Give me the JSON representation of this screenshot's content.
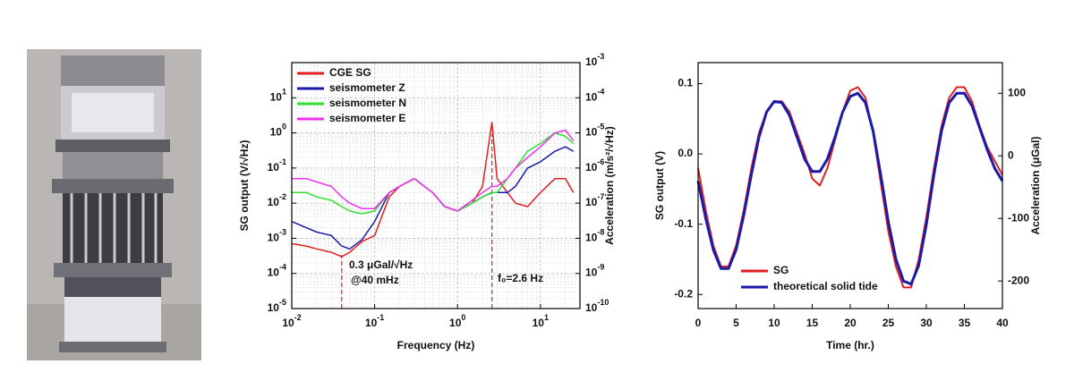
{
  "chart_data": [
    {
      "type": "line",
      "xlabel": "Frequency (Hz)",
      "ylabel": "SG output (V/√Hz)",
      "y2label": "Acceleration (m/s²/√Hz)",
      "xscale": "log",
      "yscale": "log",
      "y2scale": "log",
      "xlim": [
        0.01,
        30
      ],
      "ylim": [
        1e-05,
        100
      ],
      "y2lim": [
        1e-10,
        0.001
      ],
      "xticks": [
        {
          "value": 0.01,
          "label": "10",
          "exponent": "-2"
        },
        {
          "value": 0.1,
          "label": "10",
          "exponent": "-1"
        },
        {
          "value": 1,
          "label": "10",
          "exponent": "0"
        },
        {
          "value": 10,
          "label": "10",
          "exponent": "1"
        }
      ],
      "yticks": [
        {
          "value": 1e-05,
          "label": "10",
          "exponent": "-5"
        },
        {
          "value": 0.0001,
          "label": "10",
          "exponent": "-4"
        },
        {
          "value": 0.001,
          "label": "10",
          "exponent": "-3"
        },
        {
          "value": 0.01,
          "label": "10",
          "exponent": "-2"
        },
        {
          "value": 0.1,
          "label": "10",
          "exponent": "-1"
        },
        {
          "value": 1,
          "label": "10",
          "exponent": "0"
        },
        {
          "value": 10,
          "label": "10",
          "exponent": "1"
        }
      ],
      "y2ticks": [
        {
          "value": 1e-10,
          "label": "10",
          "exponent": "-10"
        },
        {
          "value": 1e-09,
          "label": "10",
          "exponent": "-9"
        },
        {
          "value": 1e-08,
          "label": "10",
          "exponent": "-8"
        },
        {
          "value": 1e-07,
          "label": "10",
          "exponent": "-7"
        },
        {
          "value": 1e-06,
          "label": "10",
          "exponent": "-6"
        },
        {
          "value": 1e-05,
          "label": "10",
          "exponent": "-5"
        },
        {
          "value": 0.0001,
          "label": "10",
          "exponent": "-4"
        },
        {
          "value": 0.001,
          "label": "10",
          "exponent": "-3"
        }
      ],
      "grid": true,
      "legend": "upper left",
      "x": [
        0.01,
        0.015,
        0.02,
        0.03,
        0.04,
        0.05,
        0.07,
        0.1,
        0.15,
        0.2,
        0.3,
        0.5,
        0.7,
        1,
        1.5,
        2,
        2.6,
        3,
        4,
        5,
        7,
        10,
        15,
        20,
        25
      ],
      "series": [
        {
          "name": "CGE SG",
          "color": "#e02020",
          "values": [
            0.0007,
            0.0006,
            0.0005,
            0.0004,
            0.0003,
            0.0004,
            0.0008,
            0.0012,
            0.015,
            0.03,
            0.05,
            0.02,
            0.008,
            0.006,
            0.01,
            0.03,
            2,
            0.05,
            0.02,
            0.01,
            0.008,
            0.02,
            0.05,
            0.05,
            0.02
          ]
        },
        {
          "name": "seismometer Z",
          "color": "#1a1aa8",
          "values": [
            0.003,
            0.002,
            0.0015,
            0.0012,
            0.0006,
            0.0005,
            0.0009,
            0.003,
            0.02,
            0.03,
            0.05,
            0.02,
            0.008,
            0.006,
            0.01,
            0.015,
            0.02,
            0.02,
            0.02,
            0.03,
            0.1,
            0.15,
            0.3,
            0.4,
            0.3
          ]
        },
        {
          "name": "seismometer N",
          "color": "#30e030",
          "values": [
            0.02,
            0.02,
            0.015,
            0.012,
            0.008,
            0.006,
            0.005,
            0.006,
            0.02,
            0.03,
            0.05,
            0.02,
            0.008,
            0.006,
            0.01,
            0.015,
            0.02,
            0.02,
            0.05,
            0.1,
            0.3,
            0.5,
            1,
            0.8,
            0.5
          ]
        },
        {
          "name": "seismometer E",
          "color": "#f030f0",
          "values": [
            0.05,
            0.05,
            0.04,
            0.03,
            0.015,
            0.01,
            0.007,
            0.007,
            0.02,
            0.03,
            0.05,
            0.02,
            0.008,
            0.006,
            0.012,
            0.02,
            0.03,
            0.03,
            0.05,
            0.1,
            0.2,
            0.4,
            1,
            1.2,
            0.6
          ]
        }
      ],
      "reference_lines": [
        0.04,
        2.6
      ],
      "annotations": [
        "0.3 μGal/√Hz",
        "@40 mHz",
        "f₀=2.6 Hz"
      ]
    },
    {
      "type": "line",
      "xlabel": "Time (hr.)",
      "ylabel": "SG output (V)",
      "y2label": "Acceleration (μGal)",
      "xlim": [
        0,
        40
      ],
      "ylim": [
        -0.22,
        0.13
      ],
      "y2lim": [
        -244,
        149
      ],
      "xticks": [
        0,
        5,
        10,
        15,
        20,
        25,
        30,
        35,
        40
      ],
      "yticks": [
        -0.2,
        -0.1,
        {
          "value": 0,
          "label": "0.0"
        },
        0.1
      ],
      "y2ticks": [
        -200,
        -100,
        0,
        100
      ],
      "grid": false,
      "legend": "lower left",
      "x": [
        0,
        1,
        2,
        3,
        4,
        5,
        6,
        7,
        8,
        9,
        10,
        11,
        12,
        13,
        14,
        15,
        16,
        17,
        18,
        19,
        20,
        21,
        22,
        23,
        24,
        25,
        26,
        27,
        28,
        29,
        30,
        31,
        32,
        33,
        34,
        35,
        36,
        37,
        38,
        39,
        40
      ],
      "series": [
        {
          "name": "SG",
          "color": "#e02020",
          "values": [
            -0.02,
            -0.08,
            -0.13,
            -0.16,
            -0.16,
            -0.13,
            -0.08,
            -0.02,
            0.03,
            0.06,
            0.075,
            0.075,
            0.06,
            0.03,
            0.0,
            -0.035,
            -0.045,
            -0.02,
            0.02,
            0.06,
            0.09,
            0.095,
            0.08,
            0.03,
            -0.04,
            -0.11,
            -0.16,
            -0.19,
            -0.19,
            -0.15,
            -0.09,
            -0.02,
            0.04,
            0.08,
            0.095,
            0.095,
            0.075,
            0.04,
            0.01,
            -0.01,
            -0.03
          ]
        },
        {
          "name": "theoretical solid tide",
          "color": "#1a1aa8",
          "axis": "y2",
          "values": [
            -40,
            -100,
            -150,
            -180,
            -180,
            -150,
            -95,
            -30,
            30,
            70,
            87,
            85,
            65,
            30,
            -5,
            -25,
            -25,
            -5,
            30,
            70,
            95,
            100,
            85,
            40,
            -30,
            -105,
            -165,
            -200,
            -205,
            -175,
            -110,
            -30,
            40,
            85,
            100,
            100,
            80,
            45,
            10,
            -20,
            -40
          ]
        }
      ]
    }
  ]
}
